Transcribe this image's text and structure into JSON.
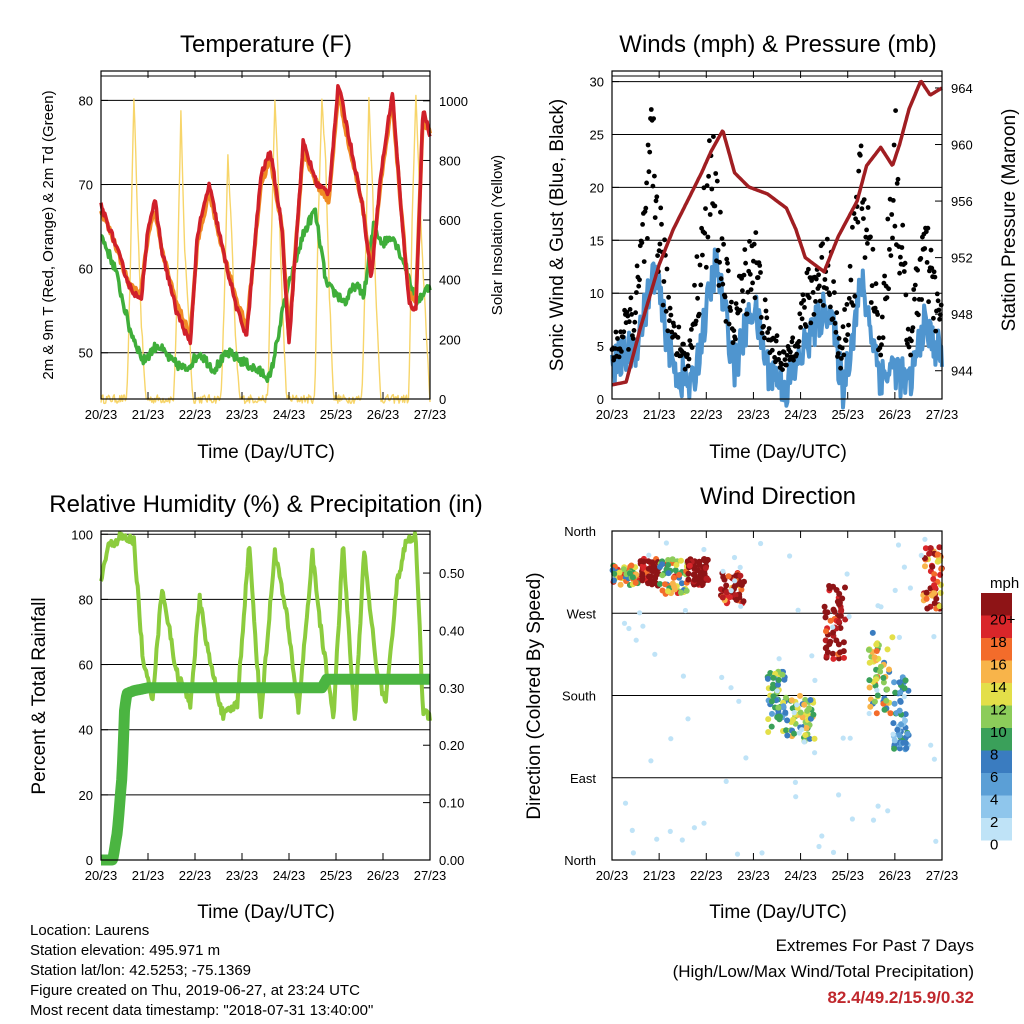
{
  "x_ticks": [
    "20/23",
    "21/23",
    "22/23",
    "23/23",
    "24/23",
    "25/23",
    "26/23",
    "27/23"
  ],
  "x_title": "Time (Day/UTC)",
  "panels": {
    "temperature": {
      "title": "Temperature (F)",
      "ylabel_left": "2m & 9m T (Red, Orange) & 2m Td (Green)",
      "ylabel_right": "Solar Insolation (Yellow)",
      "yticks_left": [
        "50",
        "60",
        "70",
        "80"
      ],
      "yticks_right": [
        "0",
        "200",
        "400",
        "600",
        "800",
        "1000"
      ]
    },
    "winds": {
      "title": "Winds (mph) & Pressure (mb)",
      "ylabel_left": "Sonic Wind & Gust (Blue, Black)",
      "ylabel_right": "Station Pressure (Maroon)",
      "yticks_left": [
        "0",
        "5",
        "10",
        "15",
        "20",
        "25",
        "30"
      ],
      "yticks_right": [
        "944",
        "948",
        "952",
        "956",
        "960",
        "964"
      ]
    },
    "humidity": {
      "title": "Relative Humidity (%) & Precipitation (in)",
      "ylabel_left": "Percent & Total Rainfall",
      "yticks_left": [
        "0",
        "20",
        "40",
        "60",
        "80",
        "100"
      ],
      "yticks_right": [
        "0.00",
        "0.10",
        "0.20",
        "0.30",
        "0.40",
        "0.50"
      ]
    },
    "direction": {
      "title": "Wind Direction",
      "ylabel_left": "Direction (Colored By Speed)",
      "yticks_left": [
        "North",
        "East",
        "South",
        "West",
        "North"
      ],
      "legend_title": "mph",
      "legend_labels": [
        "0",
        "2",
        "4",
        "6",
        "8",
        "10",
        "12",
        "14",
        "16",
        "18",
        "20+"
      ]
    }
  },
  "colors": {
    "temp_2m": "#d0202a",
    "temp_9m": "#f08a24",
    "dewpoint": "#3fae3a",
    "solar": "#f7d56a",
    "wind": "#4f95cf",
    "gust": "#000000",
    "pressure": "#a01e22",
    "rh": "#8ccc3e",
    "precip": "#4bb541",
    "speed_scale": [
      "#bfe3f7",
      "#8fc6ec",
      "#5b9fd6",
      "#3a7cc0",
      "#3aa05a",
      "#8ccc5a",
      "#e3df49",
      "#f8b44a",
      "#f36c2b",
      "#d9262a",
      "#b51d21",
      "#8e1416"
    ]
  },
  "chart_data": [
    {
      "type": "line",
      "title": "Temperature (F)",
      "xlabel": "Time (Day/UTC)",
      "ylabel": "2m & 9m T (Red, Orange) & 2m Td (Green)",
      "ylabel_right": "Solar Insolation (Yellow)",
      "xlim": [
        0,
        7
      ],
      "ylim": [
        44.5,
        83.5
      ],
      "ylim_right": [
        0,
        1100
      ],
      "series": [
        {
          "name": "2m T",
          "axis": "left",
          "x": [
            0,
            0.3,
            0.6,
            0.85,
            1.0,
            1.15,
            1.3,
            1.6,
            1.9,
            2.05,
            2.3,
            2.6,
            2.9,
            3.1,
            3.4,
            3.6,
            3.85,
            4.0,
            4.3,
            4.6,
            4.85,
            5.05,
            5.3,
            5.55,
            5.75,
            5.95,
            6.2,
            6.4,
            6.55,
            6.7,
            6.85,
            7.0
          ],
          "values": [
            67.5,
            63,
            58,
            56,
            65,
            68,
            62,
            55,
            51,
            64,
            70,
            62,
            55,
            52,
            71,
            74,
            65,
            51,
            75,
            70,
            69,
            82,
            75,
            68,
            59,
            71,
            81,
            66,
            56,
            55,
            79,
            76
          ]
        },
        {
          "name": "9m T",
          "axis": "left",
          "x": [
            0,
            0.3,
            0.6,
            0.85,
            1.0,
            1.15,
            1.3,
            1.6,
            1.9,
            2.05,
            2.3,
            2.6,
            2.9,
            3.1,
            3.4,
            3.6,
            3.85,
            4.0,
            4.3,
            4.6,
            4.85,
            5.05,
            5.3,
            5.55,
            5.75,
            5.95,
            6.2,
            6.4,
            6.55,
            6.7,
            6.85,
            7.0
          ],
          "values": [
            67,
            63,
            58,
            57,
            64,
            67,
            62,
            56,
            52,
            63,
            69,
            62,
            56,
            53,
            70,
            73,
            65,
            52,
            74,
            70,
            68,
            81,
            74,
            68,
            60,
            70,
            80,
            66,
            57,
            56,
            78,
            76
          ]
        },
        {
          "name": "2m Td",
          "axis": "left",
          "x": [
            0,
            0.3,
            0.6,
            0.9,
            1.2,
            1.5,
            1.8,
            2.1,
            2.4,
            2.7,
            3.0,
            3.3,
            3.6,
            3.9,
            4.1,
            4.3,
            4.55,
            4.8,
            5.0,
            5.2,
            5.4,
            5.6,
            5.8,
            6.0,
            6.2,
            6.5,
            6.7,
            6.85,
            7.0
          ],
          "values": [
            64,
            60,
            53,
            49,
            51,
            49,
            48,
            50,
            48,
            50,
            49,
            48,
            47,
            56,
            60,
            64,
            67,
            58,
            57,
            56,
            58,
            57,
            65,
            63,
            64,
            60,
            56,
            57,
            58
          ]
        },
        {
          "name": "Solar Insolation",
          "axis": "right",
          "x": [
            0,
            0.55,
            0.62,
            0.7,
            0.78,
            0.86,
            0.95,
            1.55,
            1.62,
            1.7,
            1.78,
            1.86,
            1.95,
            2.55,
            2.62,
            2.7,
            2.78,
            2.86,
            2.95,
            3.55,
            3.62,
            3.7,
            3.78,
            3.86,
            3.95,
            4.55,
            4.62,
            4.7,
            4.78,
            4.86,
            4.95,
            5.55,
            5.62,
            5.7,
            5.78,
            5.86,
            5.95,
            6.55,
            6.62,
            6.7,
            6.78,
            6.86,
            7.0
          ],
          "values": [
            0,
            0,
            400,
            1020,
            600,
            250,
            0,
            0,
            350,
            960,
            500,
            300,
            0,
            0,
            300,
            820,
            550,
            200,
            0,
            0,
            500,
            1010,
            700,
            300,
            0,
            0,
            600,
            1000,
            800,
            350,
            0,
            0,
            400,
            1010,
            700,
            300,
            0,
            0,
            600,
            1010,
            700,
            400,
            0
          ]
        }
      ]
    },
    {
      "type": "line",
      "title": "Winds (mph) & Pressure (mb)",
      "xlabel": "Time (Day/UTC)",
      "ylabel": "Sonic Wind & Gust (Blue, Black)",
      "ylabel_right": "Station Pressure (Maroon)",
      "xlim": [
        0,
        7
      ],
      "ylim": [
        0,
        31
      ],
      "ylim_right": [
        942,
        965.2
      ],
      "series": [
        {
          "name": "Sonic Wind",
          "axis": "left",
          "x": [
            0,
            0.5,
            0.9,
            1.3,
            1.7,
            2.2,
            2.6,
            3.0,
            3.3,
            3.7,
            4.2,
            4.6,
            4.9,
            5.3,
            5.7,
            6.0,
            6.3,
            6.6,
            7.0
          ],
          "values": [
            3,
            5,
            12,
            3,
            1,
            13,
            3,
            9,
            3,
            1,
            6,
            9,
            1,
            11,
            2,
            3,
            1,
            7,
            4
          ]
        },
        {
          "name": "Gust",
          "axis": "left",
          "x": [
            0,
            0.5,
            0.85,
            1.2,
            1.6,
            2.1,
            2.55,
            3.0,
            3.3,
            3.7,
            4.2,
            4.6,
            4.85,
            5.3,
            5.7,
            6.0,
            6.3,
            6.6,
            7.0
          ],
          "values": [
            5,
            10,
            26,
            10,
            4,
            25,
            8,
            17,
            7,
            4,
            12,
            16,
            4,
            24,
            6,
            27,
            6,
            17,
            8
          ]
        },
        {
          "name": "Station Pressure",
          "axis": "right",
          "x": [
            0,
            0.3,
            0.6,
            1.0,
            1.3,
            1.6,
            1.9,
            2.1,
            2.35,
            2.6,
            2.9,
            3.3,
            3.7,
            3.9,
            4.1,
            4.5,
            4.8,
            5.2,
            5.4,
            5.7,
            5.95,
            6.1,
            6.3,
            6.55,
            6.75,
            7.0
          ],
          "values": [
            943,
            943.2,
            947,
            951.5,
            954,
            956,
            958,
            959.5,
            961,
            958,
            957,
            956.5,
            955.5,
            954,
            952,
            951,
            953.5,
            956,
            958.5,
            959.8,
            958.5,
            960,
            962.5,
            964.5,
            963.5,
            964
          ]
        }
      ]
    },
    {
      "type": "line",
      "title": "Relative Humidity (%) & Precipitation (in)",
      "xlabel": "Time (Day/UTC)",
      "ylabel": "Percent & Total Rainfall",
      "xlim": [
        0,
        7
      ],
      "ylim": [
        0,
        101
      ],
      "ylim_right": [
        0,
        0.5733
      ],
      "series": [
        {
          "name": "Relative Humidity",
          "axis": "left",
          "x": [
            0,
            0.15,
            0.4,
            0.7,
            0.9,
            1.1,
            1.3,
            1.6,
            1.9,
            2.1,
            2.3,
            2.6,
            2.9,
            3.15,
            3.4,
            3.7,
            3.95,
            4.2,
            4.5,
            4.7,
            4.95,
            5.15,
            5.4,
            5.6,
            5.85,
            6.05,
            6.3,
            6.5,
            6.7,
            6.85,
            7.0
          ],
          "values": [
            86,
            96,
            99,
            98,
            60,
            50,
            84,
            58,
            48,
            80,
            62,
            44,
            48,
            97,
            44,
            95,
            75,
            46,
            94,
            68,
            44,
            97,
            42,
            95,
            60,
            48,
            85,
            98,
            99,
            46,
            44
          ]
        },
        {
          "name": "Total Precipitation",
          "axis": "right",
          "x": [
            0,
            0.15,
            0.25,
            0.35,
            0.45,
            0.5,
            0.55,
            0.7,
            1.0,
            2.0,
            3.0,
            4.0,
            4.7,
            4.8,
            5.5,
            6.0,
            6.5,
            7.0
          ],
          "values": [
            0,
            0,
            0,
            0.05,
            0.15,
            0.26,
            0.29,
            0.295,
            0.3,
            0.3,
            0.3,
            0.3,
            0.3,
            0.315,
            0.315,
            0.315,
            0.315,
            0.315
          ]
        }
      ]
    },
    {
      "type": "scatter",
      "title": "Wind Direction",
      "xlabel": "Time (Day/UTC)",
      "ylabel": "Direction (Colored By Speed)",
      "xlim": [
        0,
        7
      ],
      "ylim": [
        0,
        360
      ],
      "yticks": [
        0,
        90,
        180,
        270,
        360
      ],
      "ytick_labels": [
        "North",
        "East",
        "South",
        "West",
        "North"
      ],
      "color_by": "speed (mph)",
      "legend_title": "mph",
      "legend_labels": [
        "0",
        "2",
        "4",
        "6",
        "8",
        "10",
        "12",
        "14",
        "16",
        "18",
        "20+"
      ],
      "clusters": [
        {
          "x": [
            0.0,
            0.6
          ],
          "dir": [
            300,
            325
          ],
          "speed": [
            3,
            9
          ]
        },
        {
          "x": [
            0.6,
            1.0
          ],
          "dir": [
            300,
            330
          ],
          "speed": [
            8,
            14
          ]
        },
        {
          "x": [
            1.0,
            1.6
          ],
          "dir": [
            290,
            330
          ],
          "speed": [
            3,
            9
          ]
        },
        {
          "x": [
            1.6,
            2.05
          ],
          "dir": [
            300,
            330
          ],
          "speed": [
            9,
            16
          ]
        },
        {
          "x": [
            2.3,
            2.8
          ],
          "dir": [
            280,
            315
          ],
          "speed": [
            7,
            13
          ]
        },
        {
          "x": [
            3.3,
            3.7
          ],
          "dir": [
            140,
            210
          ],
          "speed": [
            2,
            6
          ]
        },
        {
          "x": [
            3.7,
            4.3
          ],
          "dir": [
            130,
            180
          ],
          "speed": [
            3,
            7
          ]
        },
        {
          "x": [
            4.5,
            4.95
          ],
          "dir": [
            220,
            300
          ],
          "speed": [
            8,
            14
          ]
        },
        {
          "x": [
            5.4,
            5.95
          ],
          "dir": [
            160,
            250
          ],
          "speed": [
            3,
            8
          ]
        },
        {
          "x": [
            5.95,
            6.3
          ],
          "dir": [
            120,
            200
          ],
          "speed": [
            1,
            4
          ]
        },
        {
          "x": [
            6.6,
            7.0
          ],
          "dir": [
            275,
            345
          ],
          "speed": [
            6,
            12
          ]
        }
      ]
    }
  ],
  "info": {
    "location": "Location: Laurens",
    "elevation": "Station elevation: 495.971 m",
    "latlon": "Station lat/lon: 42.5253; -75.1369",
    "created": "Figure created on Thu, 2019-06-27, at 23:24 UTC",
    "recent": "Most recent data timestamp: \"2018-07-31 13:40:00\""
  },
  "extremes": {
    "heading": "Extremes For Past 7 Days",
    "subheading": "(High/Low/Max Wind/Total Precipitation)",
    "values": "82.4/49.2/15.9/0.32"
  }
}
